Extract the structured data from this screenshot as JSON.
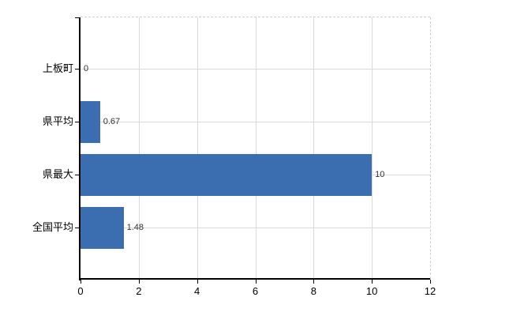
{
  "chart_data": {
    "type": "bar",
    "orientation": "horizontal",
    "title": "",
    "xlabel": "",
    "ylabel": "",
    "categories": [
      "上板町",
      "県平均",
      "県最大",
      "全国平均"
    ],
    "values": [
      0,
      0.67,
      10,
      1.48
    ],
    "value_labels": [
      "0",
      "0.67",
      "10",
      "1.48"
    ],
    "xlim": [
      0,
      12
    ],
    "x_ticks": [
      0,
      2,
      4,
      6,
      8,
      10,
      12
    ],
    "grid": true,
    "legend": false,
    "bar_color": "#3b6db1",
    "grid_color": "#d9d9d9",
    "axis_color": "#000000",
    "category_label_color": "#000000",
    "tick_label_color": "#000000",
    "value_label_color": "#333333",
    "background": "#ffffff"
  }
}
